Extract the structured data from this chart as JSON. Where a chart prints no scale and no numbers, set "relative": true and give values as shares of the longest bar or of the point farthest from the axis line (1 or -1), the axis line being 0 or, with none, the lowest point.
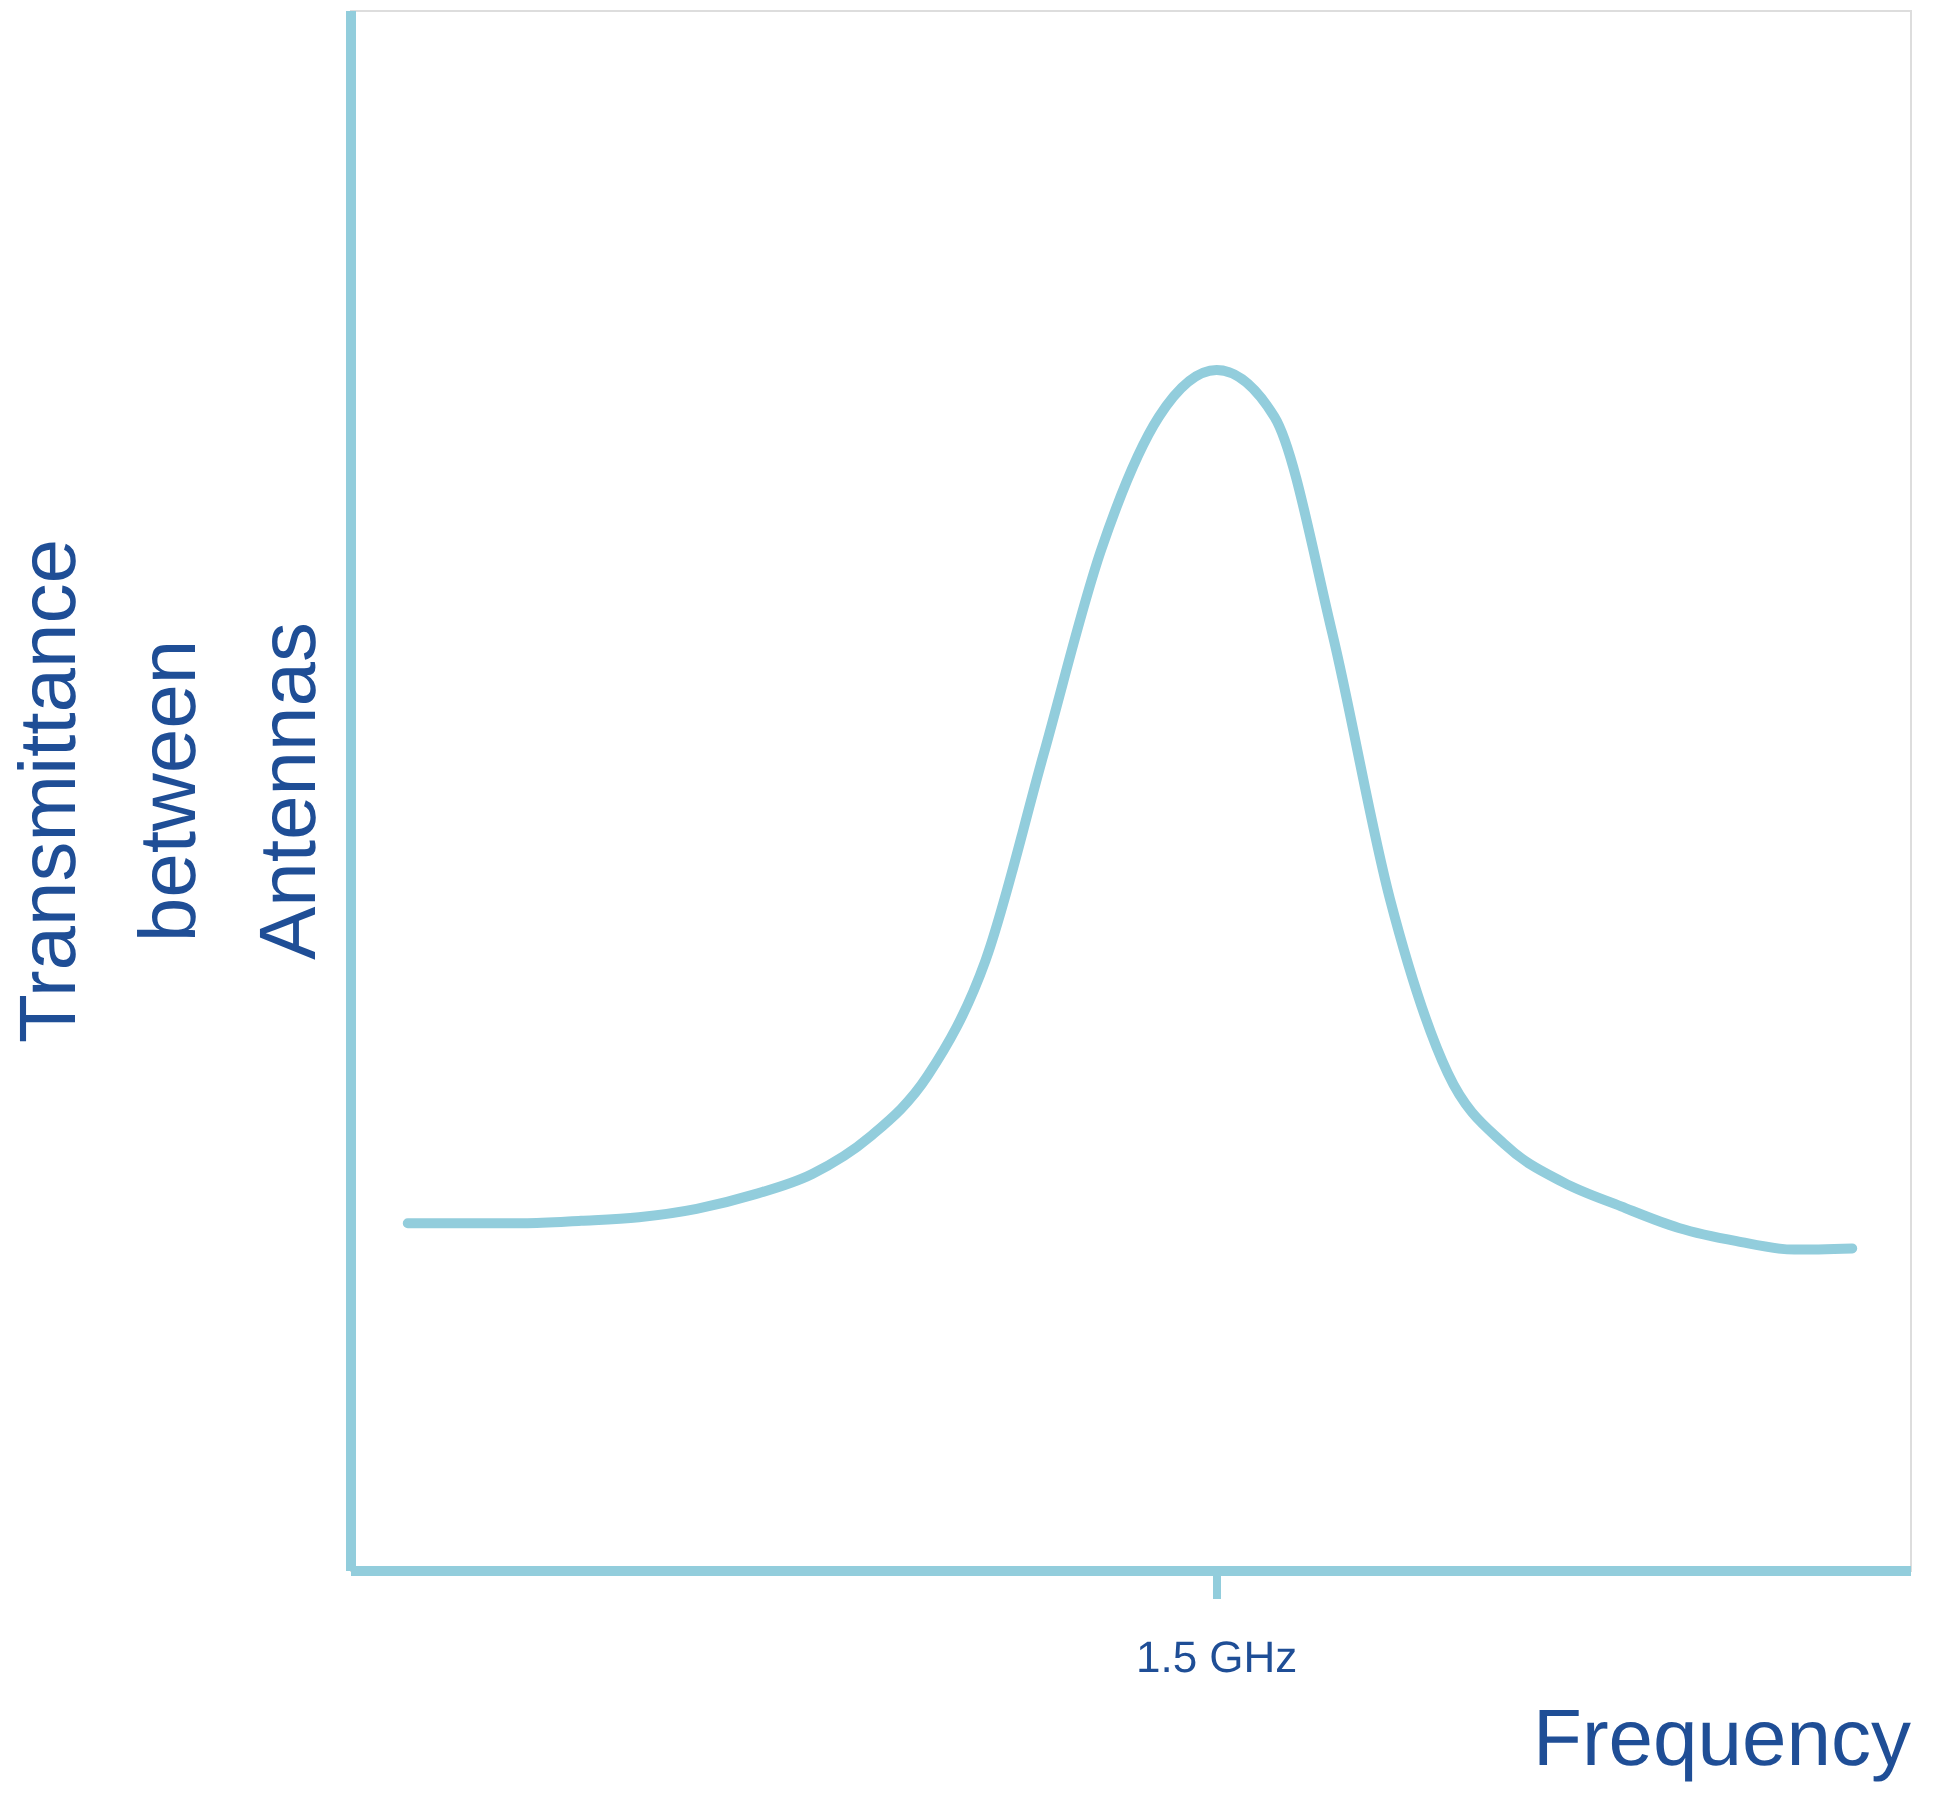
{
  "chart_data": {
    "type": "line",
    "relative": true,
    "xlabel": "Frequency",
    "ylabel": "Transmittance between Antennas",
    "categories": [
      null,
      null,
      null,
      null,
      null,
      null,
      null,
      null,
      null,
      null,
      null,
      null,
      null,
      null,
      null,
      null,
      null,
      null,
      null,
      null,
      null,
      null,
      null,
      null,
      null,
      null
    ],
    "series": [
      {
        "color": "#92cddc",
        "values": [
          0.289,
          0.289,
          0.289,
          0.291,
          0.294,
          0.301,
          0.313,
          0.33,
          0.361,
          0.412,
          0.508,
          0.679,
          0.85,
          0.961,
          1,
          0.961,
          0.781,
          0.559,
          0.414,
          0.354,
          0.323,
          0.303,
          0.285,
          0.274,
          0.267,
          0.268
        ]
      }
    ],
    "annotations": [
      "1.5 GHz"
    ],
    "grid": false,
    "legend": false,
    "marker": "none",
    "line_style": "solid"
  }
}
